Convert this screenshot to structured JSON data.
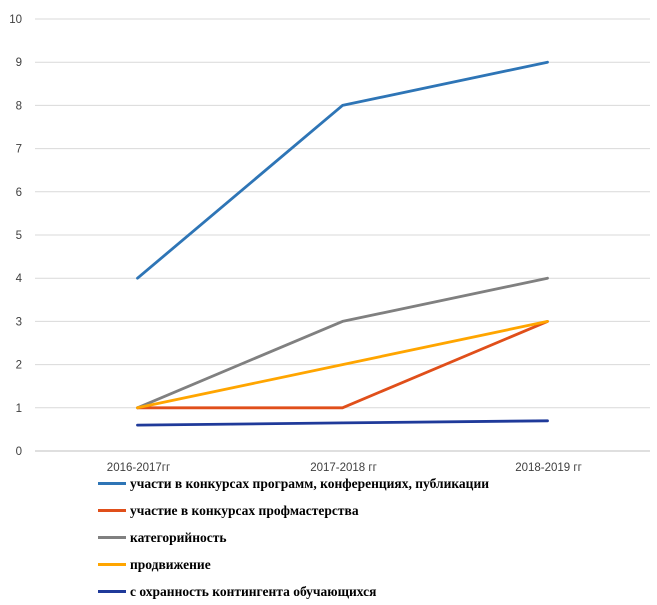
{
  "chart_data": {
    "type": "line",
    "categories": [
      "2016-2017гг",
      "2017-2018 гг",
      "2018-2019 гг"
    ],
    "ylim": [
      0,
      10
    ],
    "yticks": [
      0,
      1,
      2,
      3,
      4,
      5,
      6,
      7,
      8,
      9,
      10
    ],
    "grid": true,
    "legend_position": "bottom",
    "series": [
      {
        "name": "участи в конкурсах программ, конференциях, публикации",
        "color": "#2E75B6",
        "values": [
          4,
          8,
          9
        ]
      },
      {
        "name": "участие в конкурсах профмастерства",
        "color": "#E04F1A",
        "values": [
          1,
          1,
          3
        ]
      },
      {
        "name": "категорийность",
        "color": "#808080",
        "values": [
          1,
          3,
          4
        ]
      },
      {
        "name": "продвижение",
        "color": "#FFA500",
        "values": [
          1,
          2,
          3
        ]
      },
      {
        "name": "с охранность контингента обучающихся",
        "color": "#1F3A9A",
        "values": [
          0.6,
          0.65,
          0.7
        ]
      }
    ]
  }
}
